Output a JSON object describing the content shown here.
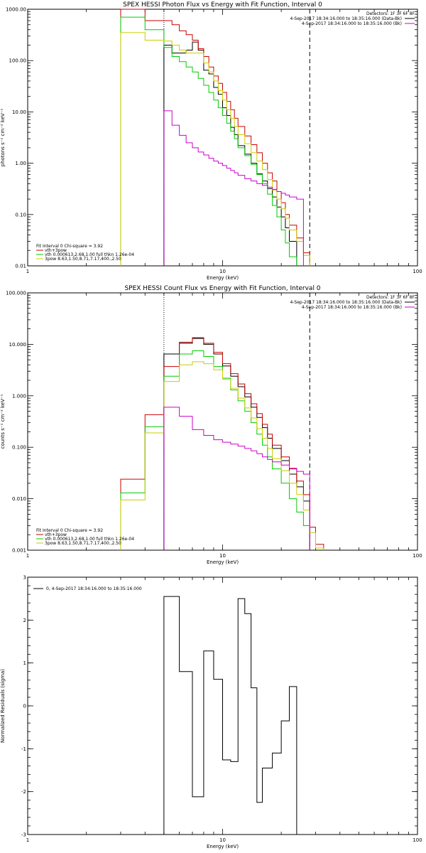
{
  "chart_data": [
    {
      "type": "line",
      "title": "SPEX HESSI Photon Flux vs Energy with Fit Function, Interval 0",
      "xlabel": "Energy (keV)",
      "ylabel": "photons s⁻¹ cm⁻² keV⁻¹",
      "xlog": true,
      "ylog": true,
      "xlim": [
        1,
        100
      ],
      "ylim": [
        0.01,
        1000
      ],
      "x_ticks": [
        1,
        10,
        100
      ],
      "x_tick_labels": [
        "1",
        "10",
        "100"
      ],
      "y_ticks": [
        0.01,
        0.1,
        1,
        10,
        100,
        1000
      ],
      "y_tick_labels": [
        "0.01",
        "0.10",
        "1.00",
        "10.00",
        "100.00",
        "1000.00"
      ],
      "info_lines": [
        "Detectors: 1F 3F 6F 8F"
      ],
      "legend_top": [
        {
          "label": "4-Sep-2017 18:34:16.000 to 18:35:16.000 (Data-Bk)",
          "color": "#000000"
        },
        {
          "label": "4-Sep-2017 18:34:16.000 to 18:35:16.000 (Bk)",
          "color": "#cc00cc"
        }
      ],
      "legend_bottom": [
        {
          "label": "Fit Interval 0   Chi-square = 3.92",
          "color": ""
        },
        {
          "label": "vth+3pow",
          "color": "#cc0000"
        },
        {
          "label": "vth 0.000613,2.68,1.00   full thkn 1.26e-04",
          "color": "#00cc00"
        },
        {
          "label": "3pow 8.63,1.50,8.71,7.17,400.,2.50",
          "color": "#cccc00"
        }
      ],
      "vlines": [
        {
          "x": 5.0,
          "style": "dotted"
        },
        {
          "x": 28.0,
          "style": "dashed"
        }
      ],
      "edges": [
        3,
        4,
        5,
        5.5,
        6,
        6.5,
        7,
        7.5,
        8,
        8.5,
        9,
        9.5,
        10,
        10.5,
        11,
        11.5,
        12,
        13,
        14,
        15,
        16,
        17,
        18,
        19,
        20,
        21,
        22,
        24,
        26,
        28,
        30,
        33
      ],
      "series": [
        {
          "name": "",
          "color": "#000000",
          "values": [
            null,
            null,
            200,
            140,
            140,
            160,
            230,
            160,
            65,
            55,
            30,
            22,
            12,
            8.5,
            5,
            3.6,
            2.2,
            1.5,
            1.0,
            0.62,
            0.45,
            0.32,
            0.22,
            0.14,
            0.09,
            0.055,
            0.03,
            null,
            null,
            null,
            null
          ]
        },
        {
          "name": "",
          "color": "#cc0000",
          "values": [
            1000,
            600,
            600,
            500,
            380,
            320,
            250,
            170,
            120,
            75,
            50,
            36,
            24,
            16,
            11,
            7.5,
            5.2,
            3.4,
            2.3,
            1.6,
            1.0,
            0.65,
            0.45,
            0.28,
            0.17,
            0.1,
            0.062,
            0.035,
            0.018,
            null,
            null
          ]
        },
        {
          "name": "",
          "color": "#00cc00",
          "values": [
            700,
            400,
            180,
            120,
            95,
            75,
            60,
            45,
            33,
            24,
            17,
            12,
            8.5,
            6,
            4.2,
            3.0,
            2.0,
            1.4,
            0.95,
            0.6,
            0.4,
            0.25,
            0.15,
            0.09,
            0.05,
            0.028,
            0.015,
            null,
            null,
            null,
            null
          ]
        },
        {
          "name": "",
          "color": "#cccc00",
          "values": [
            350,
            250,
            240,
            200,
            160,
            140,
            140,
            140,
            90,
            60,
            40,
            26,
            17,
            11,
            7.5,
            5.2,
            3.6,
            2.4,
            1.6,
            1.1,
            0.75,
            0.48,
            0.3,
            0.2,
            0.13,
            0.085,
            0.05,
            0.03,
            0.016,
            null,
            null
          ]
        },
        {
          "name": "",
          "color": "#cc00cc",
          "values": [
            null,
            null,
            10.5,
            5.5,
            3.5,
            2.5,
            2.0,
            1.65,
            1.45,
            1.25,
            1.1,
            1.0,
            0.9,
            0.8,
            0.72,
            0.65,
            0.58,
            0.5,
            0.45,
            0.4,
            0.37,
            0.34,
            0.31,
            0.28,
            0.26,
            0.24,
            0.22,
            0.2,
            null,
            null,
            null
          ]
        }
      ]
    },
    {
      "type": "line",
      "title": "SPEX HESSI Count Flux vs Energy with Fit Function, Interval 0",
      "xlabel": "Energy (keV)",
      "ylabel": "counts s⁻¹ cm⁻² keV⁻¹",
      "xlog": true,
      "ylog": true,
      "xlim": [
        1,
        100
      ],
      "ylim": [
        0.001,
        100
      ],
      "x_ticks": [
        1,
        10,
        100
      ],
      "x_tick_labels": [
        "1",
        "10",
        "100"
      ],
      "y_ticks": [
        0.001,
        0.01,
        0.1,
        1,
        10,
        100
      ],
      "y_tick_labels": [
        "0.001",
        "0.010",
        "0.100",
        "1.000",
        "10.000",
        "100.000"
      ],
      "info_lines": [
        "Detectors: 1F 3F 6F 8F"
      ],
      "legend_top": [
        {
          "label": "4-Sep-2017 18:34:16.000 to 18:35:16.000 (Data-Bk)",
          "color": "#000000"
        },
        {
          "label": "4-Sep-2017 18:34:16.000 to 18:35:16.000 (Bk)",
          "color": "#cc00cc"
        }
      ],
      "legend_bottom": [
        {
          "label": "Fit Interval 0   Chi-square = 3.92",
          "color": ""
        },
        {
          "label": "vth+3pow",
          "color": "#cc0000"
        },
        {
          "label": "vth 0.000613,2.68,1.00   full thkn 1.26e-04",
          "color": "#00cc00"
        },
        {
          "label": "3pow 8.63,1.50,8.71,7.17,400.,2.50",
          "color": "#cccc00"
        }
      ],
      "vlines": [
        {
          "x": 5.0,
          "style": "dotted"
        },
        {
          "x": 28.0,
          "style": "dashed"
        }
      ],
      "edges": [
        3,
        4,
        5,
        6,
        7,
        8,
        9,
        10,
        11,
        12,
        13,
        14,
        15,
        16,
        17,
        18,
        20,
        22,
        24,
        26,
        28,
        30,
        33
      ],
      "series": [
        {
          "name": "",
          "color": "#000000",
          "values": [
            null,
            null,
            6.5,
            10.5,
            13,
            10,
            6.5,
            3.8,
            2.4,
            1.5,
            0.95,
            0.6,
            0.38,
            0.24,
            0.15,
            0.095,
            0.055,
            0.03,
            0.017,
            0.009,
            null,
            null
          ]
        },
        {
          "name": "",
          "color": "#cc0000",
          "values": [
            0.024,
            0.43,
            3.7,
            11,
            13.5,
            10.5,
            7,
            4.2,
            2.7,
            1.7,
            1.1,
            0.7,
            0.45,
            0.28,
            0.18,
            0.11,
            0.065,
            0.038,
            0.022,
            0.012,
            0.0028,
            0.0013
          ]
        },
        {
          "name": "",
          "color": "#00cc00",
          "values": [
            0.013,
            0.25,
            2.4,
            6.5,
            7.5,
            5.8,
            3.7,
            2.2,
            1.3,
            0.8,
            0.5,
            0.3,
            0.18,
            0.11,
            0.065,
            0.038,
            0.02,
            0.01,
            0.0055,
            0.003,
            null,
            null
          ]
        },
        {
          "name": "",
          "color": "#cccc00",
          "values": [
            0.0095,
            0.19,
            1.9,
            4.0,
            4.6,
            4.2,
            3.2,
            2.1,
            1.4,
            0.9,
            0.58,
            0.37,
            0.23,
            0.15,
            0.095,
            0.06,
            0.035,
            0.02,
            0.012,
            0.006,
            0.0022,
            0.0011
          ]
        },
        {
          "name": "",
          "color": "#cc00cc",
          "values": [
            null,
            null,
            0.6,
            0.4,
            0.22,
            0.17,
            0.14,
            0.125,
            0.115,
            0.105,
            0.095,
            0.085,
            0.075,
            0.065,
            0.058,
            0.052,
            0.045,
            0.039,
            0.034,
            0.03,
            null,
            null
          ]
        }
      ]
    },
    {
      "type": "line",
      "title": "",
      "xlabel": "Energy (keV)",
      "ylabel": "Normalized Residuals (sigma)",
      "xlog": true,
      "ylog": false,
      "xlim": [
        1,
        100
      ],
      "ylim": [
        -3,
        3
      ],
      "x_ticks": [
        1,
        10,
        100
      ],
      "x_tick_labels": [
        "1",
        "10",
        "100"
      ],
      "y_ticks": [
        -3,
        -2,
        -1,
        0,
        1,
        2,
        3
      ],
      "y_tick_labels": [
        "-3",
        "-2",
        "-1",
        "0",
        "1",
        "2",
        "3"
      ],
      "legend_top_left": [
        {
          "label": "0,  4-Sep-2017 18:34:16.000 to 18:35:16.000",
          "color": "#000000"
        }
      ],
      "edges": [
        5,
        6,
        7,
        8,
        9,
        10,
        11,
        12,
        13,
        14,
        15,
        16,
        18,
        20,
        22,
        24,
        26,
        28
      ],
      "series": [
        {
          "name": "",
          "color": "#000000",
          "values": [
            2.55,
            0.8,
            -2.12,
            1.28,
            0.62,
            -1.26,
            -1.3,
            2.5,
            2.15,
            0.42,
            -2.25,
            -1.45,
            -1.1,
            -0.35,
            0.45,
            null,
            null
          ]
        }
      ]
    }
  ]
}
